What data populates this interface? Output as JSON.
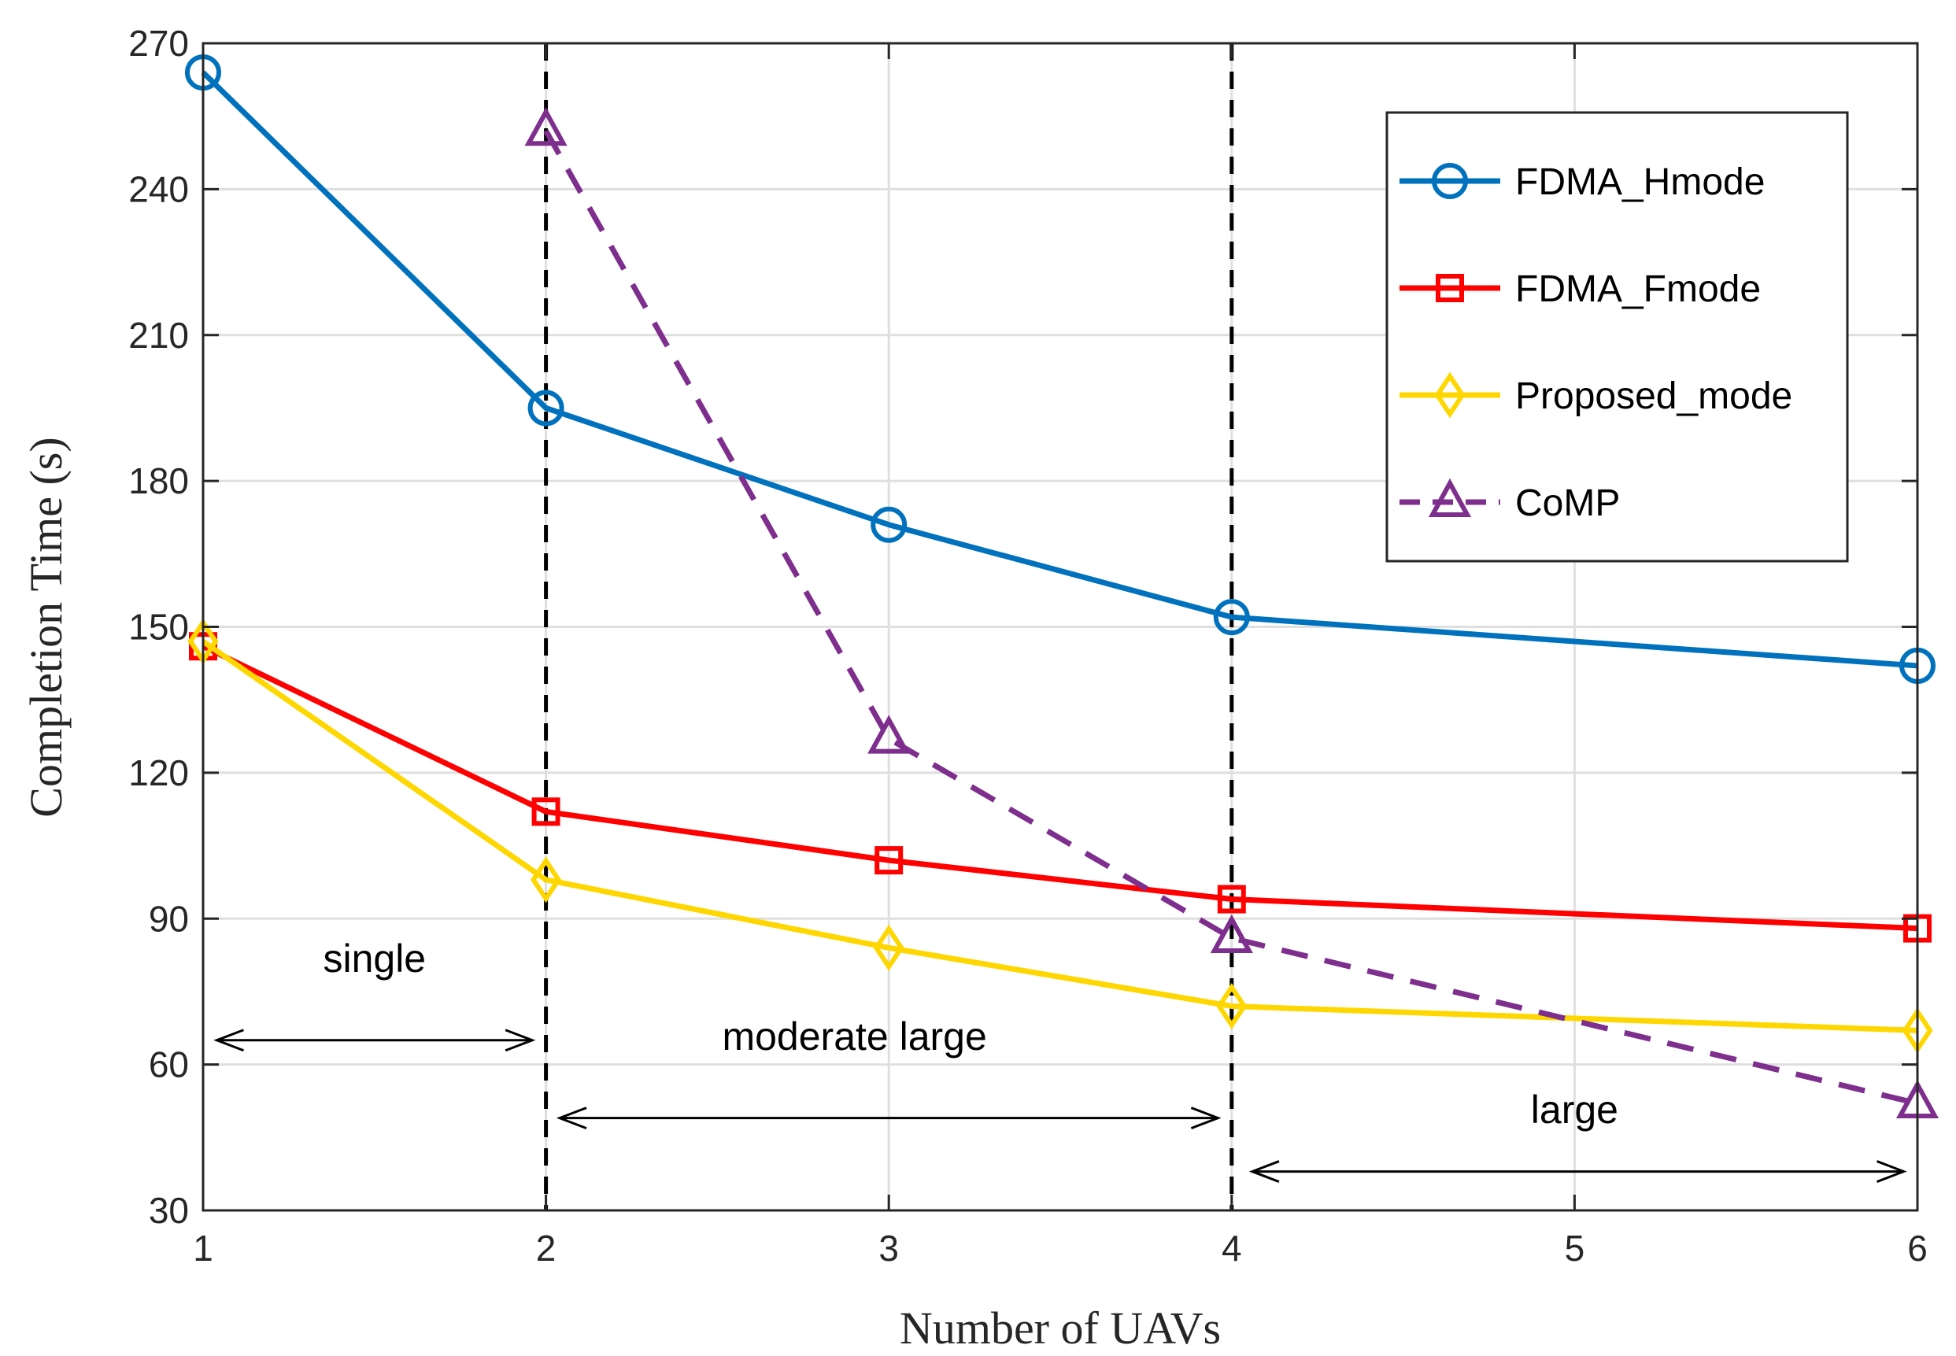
{
  "chart_data": {
    "type": "line",
    "title": "",
    "xlabel": "Number of UAVs",
    "ylabel": "Completion Time (s)",
    "xlim": [
      1,
      6
    ],
    "ylim": [
      30,
      270
    ],
    "xticks": [
      1,
      2,
      3,
      4,
      5,
      6
    ],
    "yticks": [
      30,
      60,
      90,
      120,
      150,
      180,
      210,
      240,
      270
    ],
    "grid": true,
    "legend_position": "top-right",
    "series": [
      {
        "name": "FDMA_Hmode",
        "color": "#0072BD",
        "marker": "circle",
        "style": "solid",
        "x": [
          1,
          2,
          3,
          4,
          6
        ],
        "y": [
          264,
          195,
          171,
          152,
          142
        ]
      },
      {
        "name": "FDMA_Fmode",
        "color": "#FF0000",
        "marker": "square",
        "style": "solid",
        "x": [
          1,
          2,
          3,
          4,
          6
        ],
        "y": [
          146,
          112,
          102,
          94,
          88
        ]
      },
      {
        "name": "Proposed_mode",
        "color": "#FFD700",
        "marker": "diamond",
        "style": "solid",
        "x": [
          1,
          2,
          3,
          4,
          6
        ],
        "y": [
          147,
          98,
          84,
          72,
          67
        ]
      },
      {
        "name": "CoMP",
        "color": "#7E2F8E",
        "marker": "triangle",
        "style": "dashed",
        "x": [
          2,
          3,
          4,
          6
        ],
        "y": [
          252,
          127,
          86,
          52
        ]
      }
    ],
    "vlines": [
      2,
      4
    ],
    "annotations": [
      {
        "text": "single",
        "x": 1.5,
        "y": 79
      },
      {
        "text": "moderate large",
        "x": 2.9,
        "y": 63
      },
      {
        "text": "large",
        "x": 5.0,
        "y": 48
      }
    ],
    "arrows": [
      {
        "x1": 1.04,
        "x2": 1.96,
        "y": 65
      },
      {
        "x1": 2.04,
        "x2": 3.96,
        "y": 49
      },
      {
        "x1": 4.06,
        "x2": 5.96,
        "y": 38
      }
    ]
  }
}
